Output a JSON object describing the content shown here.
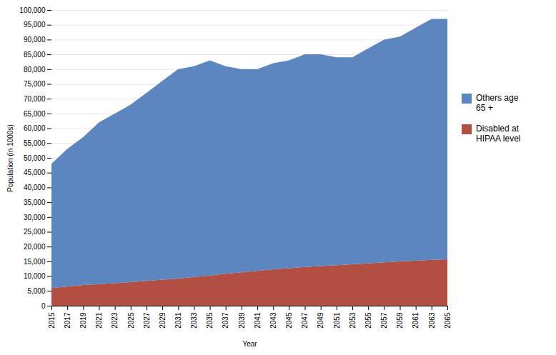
{
  "chart_data": {
    "type": "area",
    "stacked": true,
    "xlabel": "Year",
    "ylabel": "Population (in 1000s)",
    "x": [
      2015,
      2017,
      2019,
      2021,
      2023,
      2025,
      2027,
      2029,
      2031,
      2033,
      2035,
      2037,
      2039,
      2041,
      2043,
      2045,
      2047,
      2049,
      2051,
      2053,
      2055,
      2057,
      2059,
      2061,
      2063,
      2065
    ],
    "series": [
      {
        "name": "Disabled at\nHIPAA level",
        "color": "#B34E42",
        "values": [
          6000,
          6500,
          7000,
          7300,
          7600,
          8000,
          8400,
          8800,
          9200,
          9700,
          10200,
          10800,
          11300,
          11800,
          12300,
          12700,
          13100,
          13400,
          13700,
          14000,
          14300,
          14700,
          15000,
          15200,
          15500,
          15700
        ]
      },
      {
        "name": "Others age\n65 +",
        "color": "#5B86BF",
        "values": [
          42000,
          46500,
          50000,
          54700,
          57400,
          60000,
          63600,
          67200,
          70800,
          71300,
          72800,
          70200,
          68700,
          68200,
          69700,
          70300,
          71900,
          71600,
          70300,
          70000,
          72700,
          75300,
          76000,
          78800,
          81500,
          81300
        ]
      }
    ],
    "xlim": [
      2015,
      2065
    ],
    "xticks": [
      2015,
      2017,
      2019,
      2021,
      2023,
      2025,
      2027,
      2029,
      2031,
      2033,
      2035,
      2037,
      2039,
      2041,
      2043,
      2045,
      2047,
      2049,
      2051,
      2053,
      2055,
      2057,
      2059,
      2061,
      2063,
      2065
    ],
    "ylim": [
      0,
      100000
    ],
    "yticks": [
      0,
      {
        "value": 5000,
        "label": "5,000"
      },
      {
        "value": 10000,
        "label": "10,000"
      },
      {
        "value": 15000,
        "label": "15,000"
      },
      {
        "value": 20000,
        "label": "20,000"
      },
      {
        "value": 25000,
        "label": "25,000"
      },
      {
        "value": 30000,
        "label": "30,000"
      },
      {
        "value": 35000,
        "label": "35,000"
      },
      {
        "value": 40000,
        "label": "40,000"
      },
      {
        "value": 45000,
        "label": "45,000"
      },
      {
        "value": 50000,
        "label": "50,000"
      },
      {
        "value": 55000,
        "label": "55,000"
      },
      {
        "value": 60000,
        "label": "60,000"
      },
      {
        "value": 65000,
        "label": "65,000"
      },
      {
        "value": 70000,
        "label": "70,000"
      },
      {
        "value": 75000,
        "label": "75,000"
      },
      {
        "value": 80000,
        "label": "80,000"
      },
      {
        "value": 85000,
        "label": "85,000"
      },
      {
        "value": 90000,
        "label": "90,000"
      },
      {
        "value": 95000,
        "label": "95,000"
      },
      {
        "value": 100000,
        "label": "100,000"
      }
    ],
    "grid": true,
    "legend": "right"
  }
}
